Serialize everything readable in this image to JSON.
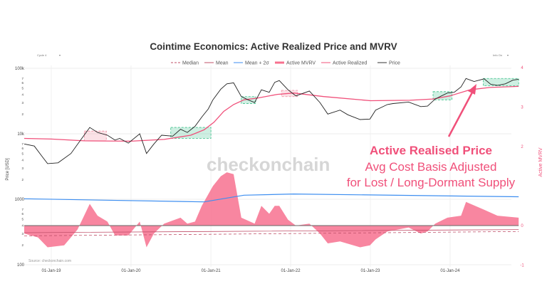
{
  "chart_data": {
    "type": "line",
    "title": "Cointime Economics: Active Realized Price and MVRV",
    "ylabel": "Price [USD]",
    "y2label": "Active MVRV",
    "yscale": "log",
    "ylim": [
      100,
      100000
    ],
    "y2lim": [
      -1,
      4
    ],
    "y_tick_labels": [
      "100",
      "1000",
      "10k",
      "100k"
    ],
    "y2_tick_labels": [
      "-1",
      "0",
      "2",
      "3",
      "4"
    ],
    "x_tick_labels": [
      "01-Jan-19",
      "01-Jan-20",
      "01-Jan-21",
      "01-Jan-22",
      "01-Jan-23",
      "01-Jan-24"
    ],
    "x_tick_dates": [
      "2019-01-01",
      "2020-01-01",
      "2021-01-01",
      "2022-01-01",
      "2023-01-01",
      "2024-01-01"
    ],
    "xlim": [
      "2018-08-30",
      "2024-11-15"
    ],
    "grid": true,
    "legend_position": "top",
    "legend": [
      "Median",
      "Mean",
      "Mean + 2σ",
      "Active MVRV",
      "Active Realized",
      "Price"
    ],
    "colors": {
      "price": "#222222",
      "active_realized": "#f0507a",
      "active_mvrv": "#f7718f",
      "mean": "#c0506a",
      "median": "#c0506a",
      "mean_2sd": "#3d8ef0",
      "accumulation": "#3cc08a",
      "distribution": "#f08aa0"
    },
    "series": [
      {
        "name": "Price",
        "axis": "left",
        "points": [
          [
            "2018-08-30",
            7000
          ],
          [
            "2018-10-15",
            6500
          ],
          [
            "2018-11-20",
            4500
          ],
          [
            "2018-12-15",
            3500
          ],
          [
            "2019-02-01",
            3600
          ],
          [
            "2019-04-01",
            5000
          ],
          [
            "2019-05-15",
            8000
          ],
          [
            "2019-06-26",
            12500
          ],
          [
            "2019-08-01",
            10500
          ],
          [
            "2019-09-15",
            9500
          ],
          [
            "2019-10-20",
            8000
          ],
          [
            "2019-11-10",
            8500
          ],
          [
            "2019-12-20",
            7200
          ],
          [
            "2020-02-10",
            10000
          ],
          [
            "2020-03-12",
            5000
          ],
          [
            "2020-04-15",
            7000
          ],
          [
            "2020-05-20",
            9500
          ],
          [
            "2020-07-10",
            9200
          ],
          [
            "2020-08-15",
            11700
          ],
          [
            "2020-09-15",
            10500
          ],
          [
            "2020-10-20",
            13000
          ],
          [
            "2020-11-20",
            18000
          ],
          [
            "2020-12-20",
            24000
          ],
          [
            "2021-01-10",
            33000
          ],
          [
            "2021-02-15",
            48000
          ],
          [
            "2021-03-15",
            58000
          ],
          [
            "2021-04-15",
            60000
          ],
          [
            "2021-05-20",
            37000
          ],
          [
            "2021-06-20",
            33000
          ],
          [
            "2021-07-20",
            30000
          ],
          [
            "2021-08-20",
            47000
          ],
          [
            "2021-09-25",
            43000
          ],
          [
            "2021-10-20",
            61000
          ],
          [
            "2021-11-10",
            65000
          ],
          [
            "2021-12-20",
            47000
          ],
          [
            "2022-01-25",
            38000
          ],
          [
            "2022-03-28",
            45000
          ],
          [
            "2022-05-15",
            30000
          ],
          [
            "2022-06-20",
            20000
          ],
          [
            "2022-08-15",
            23000
          ],
          [
            "2022-09-20",
            19500
          ],
          [
            "2022-11-15",
            16500
          ],
          [
            "2022-12-30",
            16800
          ],
          [
            "2023-01-25",
            23000
          ],
          [
            "2023-03-20",
            28000
          ],
          [
            "2023-04-15",
            29000
          ],
          [
            "2023-06-25",
            30500
          ],
          [
            "2023-08-20",
            26000
          ],
          [
            "2023-09-20",
            26500
          ],
          [
            "2023-10-25",
            34000
          ],
          [
            "2023-11-20",
            37500
          ],
          [
            "2023-12-20",
            42000
          ],
          [
            "2024-01-20",
            43000
          ],
          [
            "2024-02-20",
            52000
          ],
          [
            "2024-03-14",
            70000
          ],
          [
            "2024-04-20",
            63000
          ],
          [
            "2024-06-05",
            69000
          ],
          [
            "2024-07-05",
            57000
          ],
          [
            "2024-08-05",
            55000
          ],
          [
            "2024-09-10",
            58000
          ],
          [
            "2024-10-15",
            66000
          ],
          [
            "2024-11-10",
            68000
          ]
        ]
      },
      {
        "name": "Active Realized",
        "axis": "left",
        "points": [
          [
            "2018-08-30",
            8500
          ],
          [
            "2019-01-01",
            8300
          ],
          [
            "2019-06-01",
            7800
          ],
          [
            "2020-01-01",
            7700
          ],
          [
            "2020-06-01",
            8200
          ],
          [
            "2020-10-01",
            9500
          ],
          [
            "2020-12-01",
            11500
          ],
          [
            "2021-01-15",
            15000
          ],
          [
            "2021-03-01",
            22000
          ],
          [
            "2021-04-15",
            28000
          ],
          [
            "2021-06-01",
            33000
          ],
          [
            "2021-08-01",
            35000
          ],
          [
            "2021-11-01",
            40000
          ],
          [
            "2022-01-15",
            42000
          ],
          [
            "2022-06-01",
            37000
          ],
          [
            "2023-01-01",
            32000
          ],
          [
            "2023-07-01",
            32500
          ],
          [
            "2023-10-15",
            34000
          ],
          [
            "2024-01-01",
            38000
          ],
          [
            "2024-04-01",
            47000
          ],
          [
            "2024-07-01",
            51000
          ],
          [
            "2024-11-10",
            53000
          ]
        ]
      },
      {
        "name": "Active MVRV",
        "axis": "right",
        "points": [
          [
            "2018-08-30",
            -0.2
          ],
          [
            "2018-11-01",
            -0.3
          ],
          [
            "2018-12-15",
            -0.55
          ],
          [
            "2019-03-01",
            -0.5
          ],
          [
            "2019-05-01",
            -0.1
          ],
          [
            "2019-06-26",
            0.55
          ],
          [
            "2019-08-01",
            0.25
          ],
          [
            "2019-09-15",
            0.1
          ],
          [
            "2019-10-20",
            -0.25
          ],
          [
            "2019-12-20",
            -0.25
          ],
          [
            "2020-02-10",
            0.1
          ],
          [
            "2020-03-12",
            -0.55
          ],
          [
            "2020-04-15",
            -0.2
          ],
          [
            "2020-06-01",
            0.05
          ],
          [
            "2020-08-15",
            0.2
          ],
          [
            "2020-09-15",
            0.05
          ],
          [
            "2020-10-20",
            0.1
          ],
          [
            "2020-11-20",
            0.5
          ],
          [
            "2021-01-10",
            1.0
          ],
          [
            "2021-02-15",
            1.25
          ],
          [
            "2021-03-15",
            1.35
          ],
          [
            "2021-04-15",
            1.3
          ],
          [
            "2021-05-20",
            0.2
          ],
          [
            "2021-07-20",
            0.05
          ],
          [
            "2021-08-20",
            0.5
          ],
          [
            "2021-09-25",
            0.3
          ],
          [
            "2021-10-20",
            0.5
          ],
          [
            "2021-11-10",
            0.5
          ],
          [
            "2021-12-20",
            0.15
          ],
          [
            "2022-01-25",
            0.0
          ],
          [
            "2022-03-28",
            0.05
          ],
          [
            "2022-05-15",
            -0.2
          ],
          [
            "2022-06-20",
            -0.45
          ],
          [
            "2022-08-15",
            -0.4
          ],
          [
            "2022-11-15",
            -0.55
          ],
          [
            "2022-12-30",
            -0.5
          ],
          [
            "2023-01-25",
            -0.35
          ],
          [
            "2023-03-20",
            -0.15
          ],
          [
            "2023-06-25",
            -0.05
          ],
          [
            "2023-08-20",
            -0.2
          ],
          [
            "2023-09-20",
            -0.15
          ],
          [
            "2023-10-25",
            0.05
          ],
          [
            "2023-12-20",
            0.2
          ],
          [
            "2024-02-20",
            0.25
          ],
          [
            "2024-03-14",
            0.6
          ],
          [
            "2024-06-05",
            0.4
          ],
          [
            "2024-08-05",
            0.25
          ],
          [
            "2024-11-10",
            0.2
          ]
        ]
      },
      {
        "name": "Mean + 2σ",
        "axis": "right",
        "points": [
          [
            "2018-08-30",
            0.68
          ],
          [
            "2020-12-01",
            0.6
          ],
          [
            "2021-06-01",
            0.77
          ],
          [
            "2022-01-15",
            0.8
          ],
          [
            "2024-11-10",
            0.73
          ]
        ]
      },
      {
        "name": "Mean",
        "axis": "right",
        "points": [
          [
            "2018-08-30",
            -0.18
          ],
          [
            "2021-01-01",
            -0.15
          ],
          [
            "2024-11-10",
            -0.1
          ]
        ]
      },
      {
        "name": "Median",
        "axis": "right",
        "points": [
          [
            "2018-08-30",
            -0.26
          ],
          [
            "2021-01-01",
            -0.22
          ],
          [
            "2024-11-10",
            -0.15
          ]
        ]
      }
    ],
    "zones": [
      {
        "type": "distribution",
        "from": "2019-06-01",
        "to": "2019-09-10",
        "low": 7800,
        "high": 11000
      },
      {
        "type": "accumulation",
        "from": "2020-07-01",
        "to": "2021-01-01",
        "low": 8500,
        "high": 12500
      },
      {
        "type": "accumulation",
        "from": "2021-05-20",
        "to": "2021-07-25",
        "low": 29000,
        "high": 37000
      },
      {
        "type": "distribution",
        "from": "2021-11-20",
        "to": "2022-02-01",
        "low": 37000,
        "high": 46000
      },
      {
        "type": "accumulation",
        "from": "2023-10-15",
        "to": "2024-01-10",
        "low": 33000,
        "high": 44000
      },
      {
        "type": "accumulation",
        "from": "2024-06-01",
        "to": "2024-11-10",
        "low": 54000,
        "high": 70000
      }
    ]
  },
  "controls": {
    "cycle_select": "Cycle 4",
    "info_select": "Info On"
  },
  "source": "Source: checkonchain.com",
  "watermark": "checkonchain",
  "annotation": {
    "line1": "Active Realised Price",
    "line2": "Avg Cost Basis Adjusted",
    "line3": "for Lost / Long-Dormant Supply"
  }
}
